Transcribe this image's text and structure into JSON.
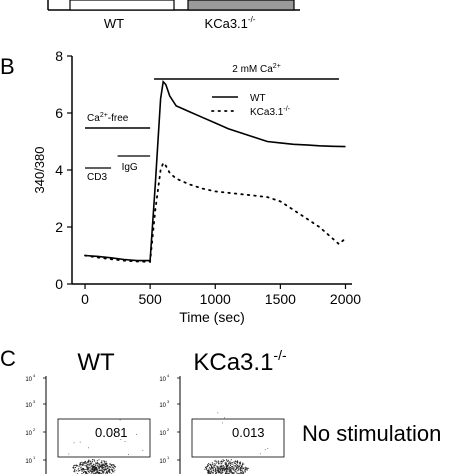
{
  "panel_a": {
    "categories": [
      "WT",
      "KCa3.1"
    ],
    "categories_sup": [
      "",
      "-/-"
    ],
    "bar_colors": [
      "#ffffff",
      "#9a9a9a"
    ]
  },
  "panel_b": {
    "label": "B",
    "ca_bar_label": "2 mM Ca",
    "ca_bar_sup": "2+",
    "cafree_label": "Ca",
    "cafree_sup": "2+",
    "cafree_suffix": "-free",
    "cd3_label": "CD3",
    "igg_label": "IgG"
  },
  "panel_c": {
    "label": "C",
    "titles": [
      "WT",
      "KCa3.1"
    ],
    "titles_sup": [
      "",
      "-/-"
    ],
    "gate_values": [
      "0.081",
      "0.013"
    ],
    "row_label": "No stimulation",
    "y_ticks": [
      "10",
      "10",
      "10",
      "10"
    ],
    "y_tick_sups": [
      "4",
      "3",
      "2",
      "1"
    ]
  },
  "chart_data": {
    "type": "line",
    "title": "",
    "xlabel": "Time (sec)",
    "ylabel": "340/380",
    "xlim": [
      -100,
      2050
    ],
    "ylim": [
      0,
      8
    ],
    "x_ticks": [
      0,
      500,
      1000,
      1500,
      2000
    ],
    "y_ticks": [
      0,
      2,
      4,
      6,
      8
    ],
    "legend_position": "top-right",
    "grid": false,
    "series": [
      {
        "name": "WT",
        "style": "solid",
        "x": [
          0,
          100,
          200,
          300,
          400,
          500,
          540,
          580,
          600,
          620,
          650,
          700,
          800,
          900,
          1000,
          1100,
          1200,
          1300,
          1400,
          1500,
          1600,
          1700,
          1800,
          1900,
          2000
        ],
        "y": [
          1.0,
          0.97,
          0.92,
          0.86,
          0.82,
          0.82,
          3.5,
          6.5,
          7.1,
          7.0,
          6.6,
          6.25,
          6.05,
          5.85,
          5.65,
          5.45,
          5.3,
          5.15,
          5.0,
          4.95,
          4.9,
          4.88,
          4.85,
          4.83,
          4.82
        ]
      },
      {
        "name": "KCa3.1",
        "name_sup": "-/-",
        "style": "dotted",
        "x": [
          0,
          100,
          200,
          300,
          400,
          500,
          540,
          580,
          600,
          620,
          650,
          700,
          800,
          900,
          1000,
          1100,
          1200,
          1300,
          1400,
          1500,
          1600,
          1700,
          1800,
          1900,
          1950,
          2000
        ],
        "y": [
          1.0,
          0.93,
          0.87,
          0.82,
          0.79,
          0.78,
          2.6,
          4.0,
          4.25,
          4.15,
          3.9,
          3.7,
          3.5,
          3.35,
          3.25,
          3.2,
          3.15,
          3.1,
          3.05,
          2.9,
          2.6,
          2.3,
          2.0,
          1.6,
          1.4,
          1.6
        ]
      }
    ],
    "annotations": {
      "ca_bar_x": [
        530,
        1950
      ],
      "cafree_bar_x": [
        0,
        500
      ],
      "cd3_bar_x": [
        0,
        200
      ],
      "igg_bar_x": [
        250,
        500
      ]
    }
  }
}
